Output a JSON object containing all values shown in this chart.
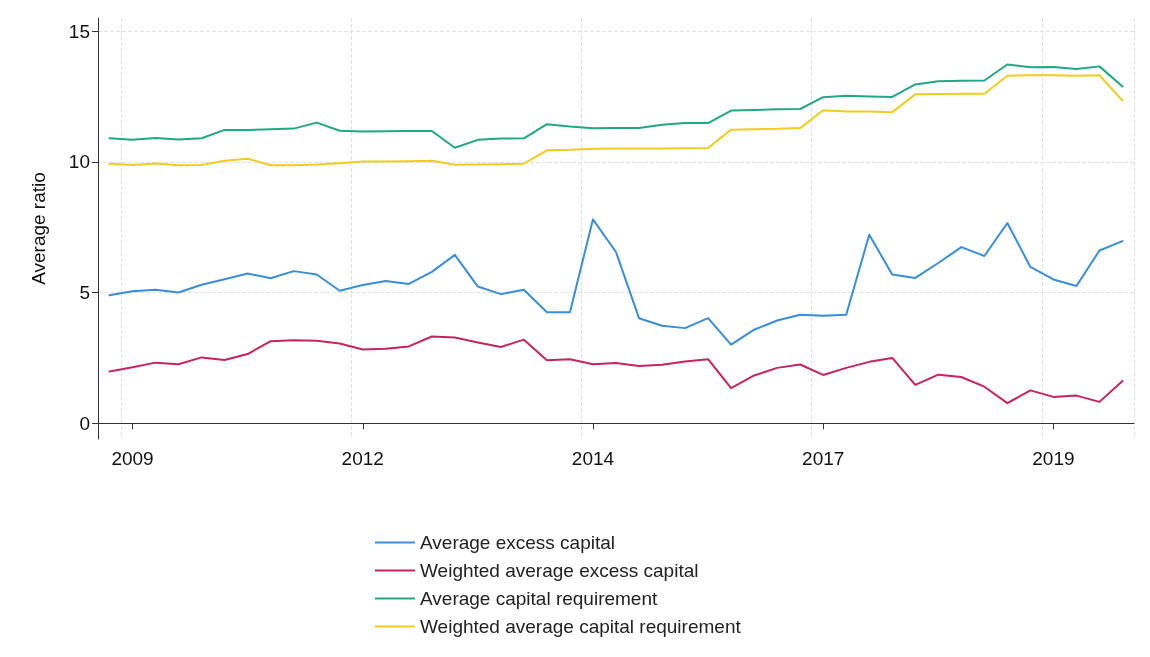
{
  "chart_data": {
    "type": "line",
    "ylabel": "Average ratio",
    "categories": [
      null,
      "2009",
      null,
      null,
      null,
      null,
      null,
      null,
      null,
      null,
      null,
      "2012",
      null,
      null,
      null,
      null,
      null,
      null,
      null,
      null,
      null,
      "2014",
      null,
      null,
      null,
      null,
      null,
      null,
      null,
      null,
      null,
      "2017",
      null,
      null,
      null,
      null,
      null,
      null,
      null,
      null,
      null,
      "2019",
      null,
      null,
      null
    ],
    "ylim": [
      -0.6,
      15.5
    ],
    "yticks": [
      0,
      5,
      10,
      15
    ],
    "grid": true,
    "legend": "bottom",
    "line_style": "solid",
    "marker": "none",
    "series": [
      {
        "name": "Average excess capital",
        "color": "#3a8dd8",
        "values": [
          4.9,
          5.05,
          5.11,
          5.0,
          5.3,
          5.51,
          5.73,
          5.55,
          5.82,
          5.69,
          5.07,
          5.29,
          5.44,
          5.33,
          5.79,
          6.44,
          5.23,
          4.94,
          5.11,
          4.25,
          4.25,
          7.8,
          6.55,
          4.02,
          3.73,
          3.64,
          4.02,
          3.01,
          3.58,
          3.93,
          4.15,
          4.11,
          4.15,
          7.21,
          5.69,
          5.56,
          6.13,
          6.74,
          6.4,
          7.66,
          5.98,
          5.5,
          5.25,
          6.61,
          6.97
        ]
      },
      {
        "name": "Weighted average excess capital",
        "color": "#c4245f",
        "values": [
          1.98,
          2.14,
          2.32,
          2.26,
          2.52,
          2.42,
          2.65,
          3.14,
          3.18,
          3.16,
          3.05,
          2.82,
          2.85,
          2.94,
          3.32,
          3.28,
          3.09,
          2.92,
          3.2,
          2.41,
          2.45,
          2.26,
          2.31,
          2.19,
          2.24,
          2.36,
          2.45,
          1.35,
          1.83,
          2.12,
          2.25,
          1.85,
          2.12,
          2.35,
          2.5,
          1.47,
          1.86,
          1.77,
          1.4,
          0.77,
          1.26,
          1.01,
          1.06,
          0.82,
          1.62
        ]
      },
      {
        "name": "Average capital requirement",
        "color": "#21a883",
        "values": [
          10.9,
          10.84,
          10.91,
          10.85,
          10.9,
          11.22,
          11.22,
          11.25,
          11.27,
          11.5,
          11.19,
          11.16,
          11.17,
          11.18,
          11.18,
          10.54,
          10.84,
          10.89,
          10.9,
          11.44,
          11.35,
          11.28,
          11.29,
          11.29,
          11.42,
          11.48,
          11.48,
          11.96,
          11.98,
          12.01,
          12.02,
          12.47,
          12.53,
          12.5,
          12.48,
          12.96,
          13.08,
          13.1,
          13.11,
          13.72,
          13.62,
          13.63,
          13.55,
          13.65,
          12.88
        ]
      },
      {
        "name": "Weighted average capital requirement",
        "color": "#f0cc1f",
        "values": [
          9.93,
          9.88,
          9.94,
          9.87,
          9.88,
          10.04,
          10.12,
          9.87,
          9.87,
          9.9,
          9.95,
          10.01,
          10.01,
          10.02,
          10.04,
          9.89,
          9.9,
          9.91,
          9.93,
          10.44,
          10.46,
          10.5,
          10.51,
          10.51,
          10.51,
          10.52,
          10.53,
          11.23,
          11.25,
          11.26,
          11.29,
          11.97,
          11.92,
          11.92,
          11.9,
          12.58,
          12.59,
          12.6,
          12.6,
          13.29,
          13.31,
          13.31,
          13.29,
          13.31,
          12.34
        ]
      }
    ]
  }
}
